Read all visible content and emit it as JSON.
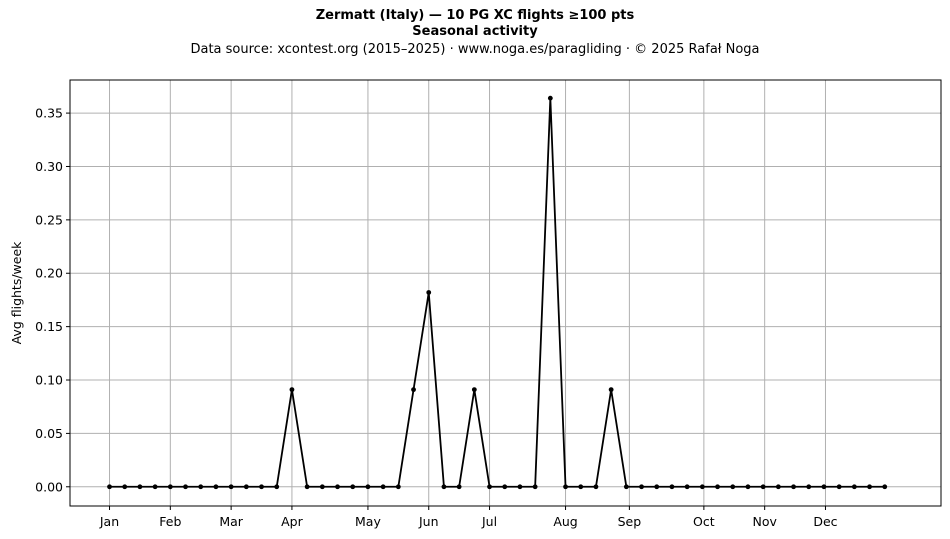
{
  "titles": {
    "line1": "Zermatt (Italy)  —  10 PG XC flights ≥100 pts",
    "line2": "Seasonal activity",
    "line3": "Data source: xcontest.org (2015–2025)  ·  www.noga.es/paragliding  ·  © 2025 Rafał Noga"
  },
  "chart_data": {
    "type": "line",
    "title": "Zermatt (Italy)  —  10 PG XC flights ≥100 pts",
    "subtitle": "Seasonal activity",
    "xlabel": "",
    "ylabel": "Avg flights/week",
    "grid": true,
    "legend": "none",
    "line_color": "#000000",
    "grid_color": "#b0b0b0",
    "x_unit": "week of year",
    "xlim": [
      -2.6,
      54.7
    ],
    "ylim": [
      -0.018,
      0.381
    ],
    "x_ticks": [
      {
        "label": "Jan",
        "x": 0
      },
      {
        "label": "Feb",
        "x": 4
      },
      {
        "label": "Mar",
        "x": 8
      },
      {
        "label": "Apr",
        "x": 12
      },
      {
        "label": "May",
        "x": 17
      },
      {
        "label": "Jun",
        "x": 21
      },
      {
        "label": "Jul",
        "x": 25
      },
      {
        "label": "Aug",
        "x": 30
      },
      {
        "label": "Sep",
        "x": 34.2
      },
      {
        "label": "Oct",
        "x": 39.1
      },
      {
        "label": "Nov",
        "x": 43.1
      },
      {
        "label": "Dec",
        "x": 47.1
      }
    ],
    "y_ticks": [
      0.0,
      0.05,
      0.1,
      0.15,
      0.2,
      0.25,
      0.3,
      0.35
    ],
    "y_tick_labels": [
      "0.00",
      "0.05",
      "0.10",
      "0.15",
      "0.20",
      "0.25",
      "0.30",
      "0.35"
    ],
    "x": [
      0,
      1,
      2,
      3,
      4,
      5,
      6,
      7,
      8,
      9,
      10,
      11,
      12,
      13,
      14,
      15,
      16,
      17,
      18,
      19,
      20,
      21,
      22,
      23,
      24,
      25,
      26,
      27,
      28,
      29,
      30,
      31,
      32,
      33,
      34,
      35,
      36,
      37,
      38,
      39,
      40,
      41,
      42,
      43,
      44,
      45,
      46,
      47,
      48,
      49,
      50,
      51
    ],
    "series": [
      {
        "values": [
          0,
          0,
          0,
          0,
          0,
          0,
          0,
          0,
          0,
          0,
          0,
          0,
          0.091,
          0,
          0,
          0,
          0,
          0,
          0,
          0,
          0.091,
          0.182,
          0,
          0,
          0.091,
          0,
          0,
          0,
          0,
          0.364,
          0,
          0,
          0,
          0.091,
          0,
          0,
          0,
          0,
          0,
          0,
          0,
          0,
          0,
          0,
          0,
          0,
          0,
          0,
          0,
          0,
          0,
          0
        ]
      }
    ]
  }
}
